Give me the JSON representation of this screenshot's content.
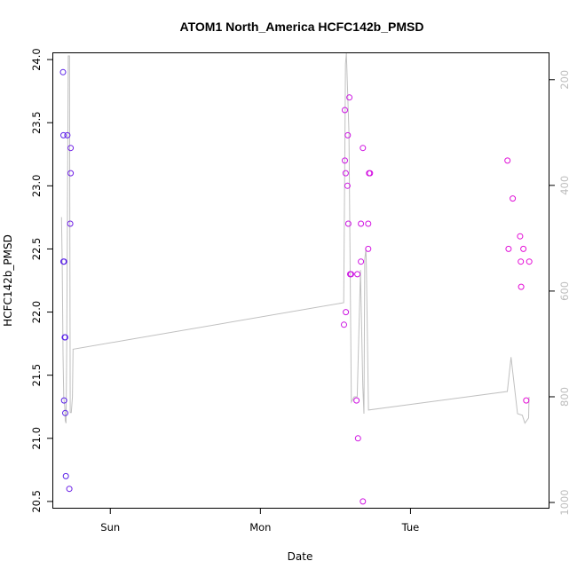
{
  "chart_data": {
    "type": "scatter",
    "title": "ATOM1 North_America HCFC142b_PMSD",
    "xlabel": "Date",
    "ylabel": "HCFC142b_PMSD",
    "x_unit": "days",
    "x_ticks": [
      {
        "label": "Sun",
        "value": 1
      },
      {
        "label": "Mon",
        "value": 2
      },
      {
        "label": "Tue",
        "value": 3
      }
    ],
    "xlim": [
      0.62,
      3.92
    ],
    "ylim": [
      20.45,
      24.05
    ],
    "y_ticks": [
      20.5,
      21.0,
      21.5,
      22.0,
      22.5,
      23.0,
      23.5,
      24.0
    ],
    "y2lim": [
      1010,
      150
    ],
    "y2_ticks": [
      200,
      400,
      600,
      800,
      1000
    ],
    "grid": false,
    "series": [
      {
        "marker": "circle-open",
        "points": [
          {
            "x": 0.685,
            "y": 23.9,
            "color": "#5a22e8"
          },
          {
            "x": 0.688,
            "y": 23.4,
            "color": "#5a22e8"
          },
          {
            "x": 0.688,
            "y": 22.4,
            "color": "#5a22e8"
          },
          {
            "x": 0.692,
            "y": 22.4,
            "color": "#5a22e8"
          },
          {
            "x": 0.692,
            "y": 21.3,
            "color": "#5a22e8"
          },
          {
            "x": 0.696,
            "y": 21.8,
            "color": "#5a22e8"
          },
          {
            "x": 0.7,
            "y": 21.8,
            "color": "#5a22e8"
          },
          {
            "x": 0.7,
            "y": 21.2,
            "color": "#5a22e8"
          },
          {
            "x": 0.704,
            "y": 20.7,
            "color": "#5a22e8"
          },
          {
            "x": 0.714,
            "y": 23.4,
            "color": "#6320e6"
          },
          {
            "x": 0.727,
            "y": 20.6,
            "color": "#6a1ee6"
          },
          {
            "x": 0.736,
            "y": 23.3,
            "color": "#7020e6"
          },
          {
            "x": 0.736,
            "y": 23.1,
            "color": "#7020e6"
          },
          {
            "x": 0.733,
            "y": 22.7,
            "color": "#7020e6"
          },
          {
            "x": 2.557,
            "y": 21.9,
            "color": "#cc16e2"
          },
          {
            "x": 2.563,
            "y": 23.6,
            "color": "#cc16e2"
          },
          {
            "x": 2.563,
            "y": 23.2,
            "color": "#cc16e2"
          },
          {
            "x": 2.568,
            "y": 23.1,
            "color": "#cc16e2"
          },
          {
            "x": 2.569,
            "y": 22.0,
            "color": "#cc16e2"
          },
          {
            "x": 2.58,
            "y": 23.0,
            "color": "#cc16e2"
          },
          {
            "x": 2.582,
            "y": 23.4,
            "color": "#cc16e2"
          },
          {
            "x": 2.586,
            "y": 22.7,
            "color": "#cc16e2"
          },
          {
            "x": 2.593,
            "y": 23.7,
            "color": "#cc16e2"
          },
          {
            "x": 2.598,
            "y": 22.3,
            "color": "#cc16e2"
          },
          {
            "x": 2.604,
            "y": 22.3,
            "color": "#cc16e2"
          },
          {
            "x": 2.64,
            "y": 21.3,
            "color": "#d014e2"
          },
          {
            "x": 2.646,
            "y": 22.3,
            "color": "#d014e2"
          },
          {
            "x": 2.65,
            "y": 21.0,
            "color": "#d014e2"
          },
          {
            "x": 2.67,
            "y": 22.7,
            "color": "#d014e2"
          },
          {
            "x": 2.67,
            "y": 22.4,
            "color": "#d014e2"
          },
          {
            "x": 2.683,
            "y": 20.5,
            "color": "#d014e2"
          },
          {
            "x": 2.683,
            "y": 23.3,
            "color": "#d014e2"
          },
          {
            "x": 2.718,
            "y": 22.7,
            "color": "#d414e2"
          },
          {
            "x": 2.718,
            "y": 22.5,
            "color": "#d414e2"
          },
          {
            "x": 2.724,
            "y": 23.1,
            "color": "#d414e2"
          },
          {
            "x": 2.73,
            "y": 23.1,
            "color": "#d414e2"
          },
          {
            "x": 3.646,
            "y": 23.2,
            "color": "#e010d8"
          },
          {
            "x": 3.653,
            "y": 22.5,
            "color": "#e010d8"
          },
          {
            "x": 3.681,
            "y": 22.9,
            "color": "#e010d8"
          },
          {
            "x": 3.73,
            "y": 22.6,
            "color": "#e40ed6"
          },
          {
            "x": 3.735,
            "y": 22.4,
            "color": "#e40ed6"
          },
          {
            "x": 3.737,
            "y": 22.2,
            "color": "#e40ed6"
          },
          {
            "x": 3.752,
            "y": 22.5,
            "color": "#e40ed6"
          },
          {
            "x": 3.771,
            "y": 21.3,
            "color": "#e40ed6"
          },
          {
            "x": 3.791,
            "y": 22.4,
            "color": "#e40ed6"
          }
        ]
      },
      {
        "axis": "right",
        "type": "line",
        "color": "#c0c0c0",
        "values": [
          [
            0.675,
            460
          ],
          [
            0.68,
            550
          ],
          [
            0.685,
            720
          ],
          [
            0.69,
            800
          ],
          [
            0.697,
            820
          ],
          [
            0.7,
            845
          ],
          [
            0.705,
            850
          ],
          [
            0.71,
            700
          ],
          [
            0.72,
            155
          ],
          [
            0.728,
            155
          ],
          [
            0.733,
            830
          ],
          [
            0.74,
            830
          ],
          [
            0.748,
            800
          ],
          [
            0.752,
            710
          ],
          [
            2.555,
            622
          ],
          [
            2.567,
            170
          ],
          [
            2.573,
            150
          ],
          [
            2.59,
            300
          ],
          [
            2.606,
            810
          ],
          [
            2.625,
            800
          ],
          [
            2.645,
            800
          ],
          [
            2.667,
            560
          ],
          [
            2.682,
            780
          ],
          [
            2.69,
            832
          ],
          [
            2.695,
            540
          ],
          [
            2.703,
            520
          ],
          [
            2.706,
            550
          ],
          [
            2.72,
            825
          ],
          [
            3.645,
            790
          ],
          [
            3.67,
            725
          ],
          [
            3.713,
            832
          ],
          [
            3.745,
            835
          ],
          [
            3.762,
            850
          ],
          [
            3.787,
            840
          ],
          [
            3.79,
            800
          ]
        ]
      }
    ]
  }
}
